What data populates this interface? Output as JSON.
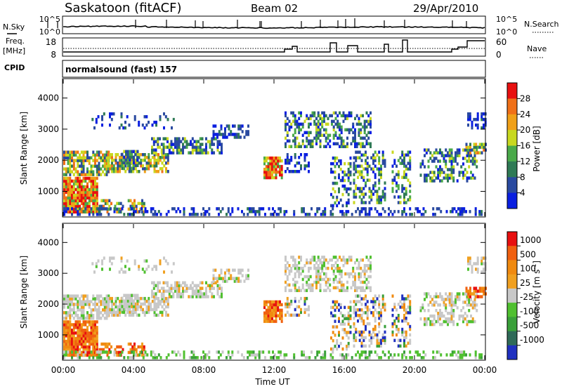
{
  "header": {
    "station": "Saskatoon (fitACF)",
    "beam": "Beam 02",
    "date": "29/Apr/2010"
  },
  "left_labels": {
    "nsky": "N.Sky",
    "freq_line1": "Freq.",
    "freq_line2": "[MHz]",
    "cpid": "CPID"
  },
  "right_labels": {
    "nsearch": "N.Search",
    "nave": "Nave"
  },
  "cpid_text": "normalsound (fast) 157",
  "colors": {
    "power": [
      "#0a1fe0",
      "#2a4aa0",
      "#2f7a55",
      "#4aaa4a",
      "#c8d820",
      "#f0a018",
      "#f07018",
      "#e81010"
    ],
    "velocity": [
      "#2030c0",
      "#2f6a58",
      "#3aa03a",
      "#50c030",
      "#c8c8c8",
      "#f0a020",
      "#f08a10",
      "#f06010",
      "#e81010"
    ]
  },
  "chart_data": [
    {
      "type": "line",
      "panel": "noise",
      "left_ticks": [
        "10^5",
        "10^0"
      ],
      "right_ticks": [
        "10^5",
        "10^0"
      ]
    },
    {
      "type": "line",
      "panel": "frequency",
      "left_ticks": [
        "18",
        "8"
      ],
      "right_ticks": [
        "60",
        "0"
      ]
    },
    {
      "type": "heatmap",
      "panel": "power",
      "ylabel": "Slant Range [km]",
      "yticks": [
        "1000",
        "2000",
        "3000",
        "4000"
      ],
      "ylim": [
        200,
        4600
      ],
      "xlim": [
        0,
        24
      ],
      "colorbar_label": "Power [dB]",
      "colorbar_ticks": [
        "4",
        "8",
        "12",
        "16",
        "20",
        "24",
        "28"
      ]
    },
    {
      "type": "heatmap",
      "panel": "velocity",
      "ylabel": "Slant Range [km]",
      "yticks": [
        "1000",
        "2000",
        "3000",
        "4000"
      ],
      "ylim": [
        200,
        4600
      ],
      "xlim": [
        0,
        24
      ],
      "xlabel": "Time UT",
      "xticks": [
        "00:00",
        "04:00",
        "08:00",
        "12:00",
        "16:00",
        "20:00",
        "00:00"
      ],
      "colorbar_label": "Velocity [m s",
      "colorbar_label_sup": "-1",
      "colorbar_label_end": "]",
      "colorbar_ticks": [
        "1000",
        "500",
        "100",
        "25",
        "-25",
        "-100",
        "-500",
        "-1000"
      ]
    }
  ]
}
